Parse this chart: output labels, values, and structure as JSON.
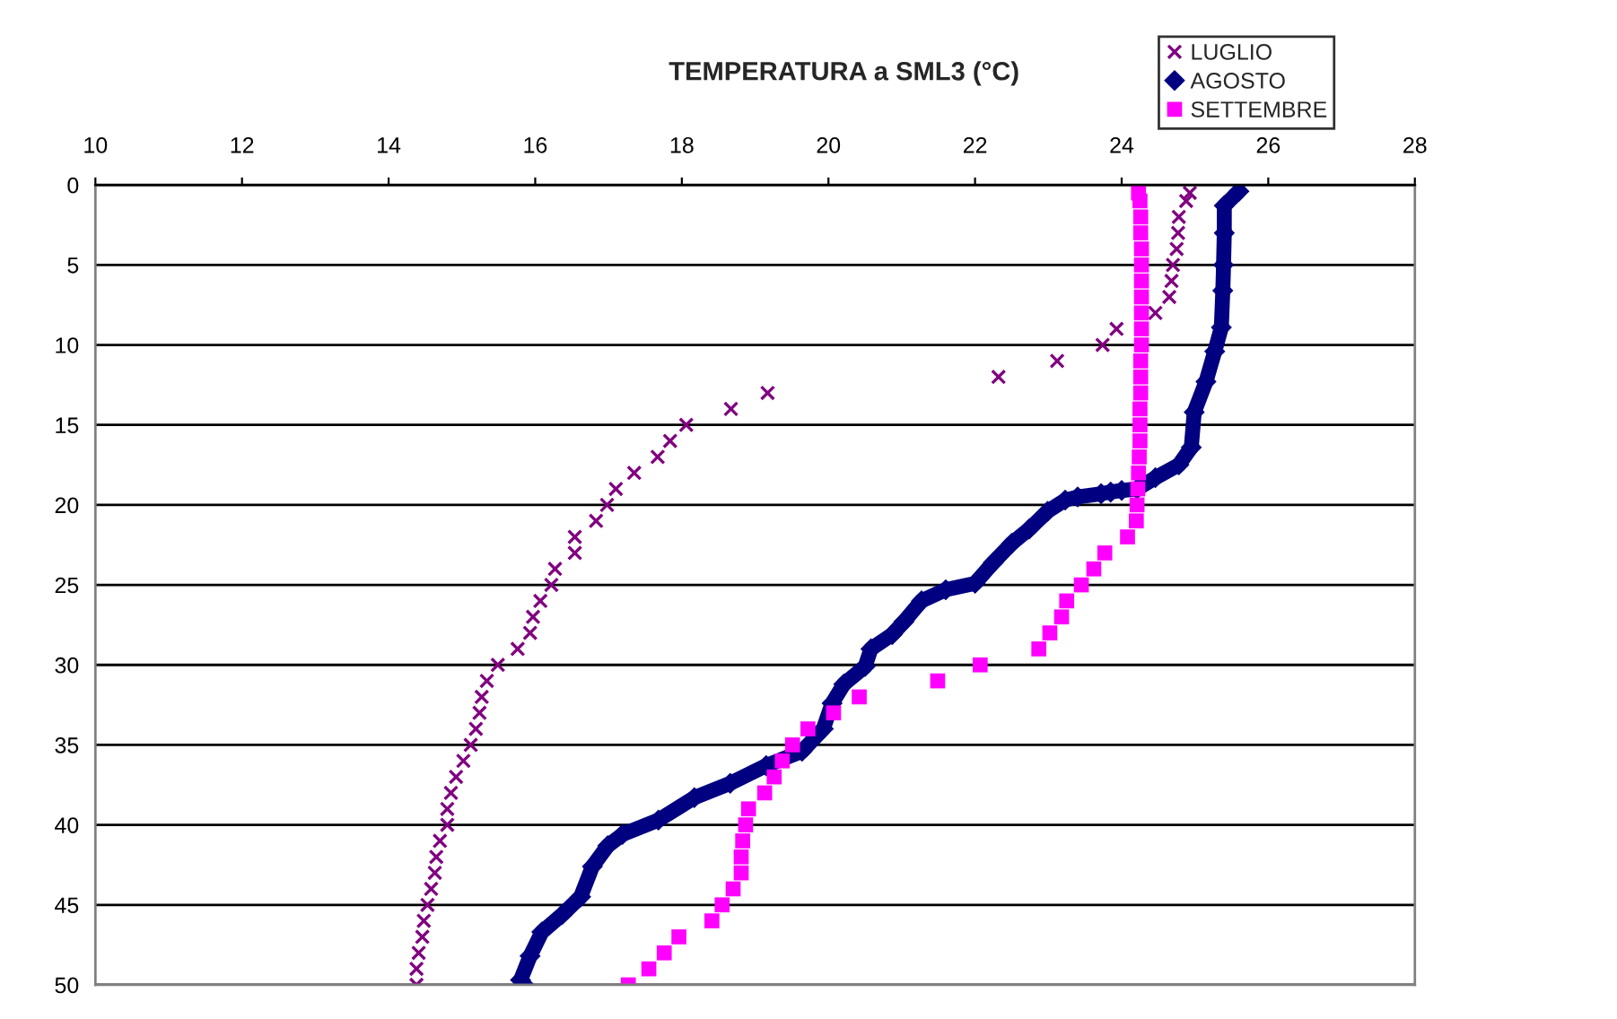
{
  "chart_data": {
    "type": "scatter",
    "title": "TEMPERATURA a SML3 (°C)",
    "xlim": [
      10,
      28
    ],
    "xticks": [
      10,
      12,
      14,
      16,
      18,
      20,
      22,
      24,
      26,
      28
    ],
    "ylim": [
      50,
      0
    ],
    "yticks": [
      0,
      5,
      10,
      15,
      20,
      25,
      30,
      35,
      40,
      45,
      50
    ],
    "grid": "y",
    "legend": "top right",
    "series": [
      {
        "name": "LUGLIO",
        "color": "#800080",
        "marker": "cross",
        "x": [
          24.93,
          24.88,
          24.78,
          24.77,
          24.75,
          24.7,
          24.68,
          24.65,
          24.46,
          23.93,
          23.74,
          23.12,
          22.32,
          19.17,
          18.67,
          18.06,
          17.84,
          17.67,
          17.35,
          17.1,
          16.98,
          16.83,
          16.54,
          16.54,
          16.27,
          16.22,
          16.07,
          15.97,
          15.93,
          15.76,
          15.49,
          15.34,
          15.27,
          15.24,
          15.19,
          15.12,
          15.02,
          14.92,
          14.85,
          14.8,
          14.8,
          14.7,
          14.65,
          14.63,
          14.58,
          14.53,
          14.48,
          14.46,
          14.41,
          14.38,
          14.38
        ],
        "values": [
          0.5,
          1,
          2,
          3,
          4,
          5,
          6,
          7,
          8,
          9,
          10,
          11,
          12,
          13,
          14,
          15,
          16,
          17,
          18,
          19,
          20,
          21,
          22,
          23,
          24,
          25,
          26,
          27,
          28,
          29,
          30,
          31,
          32,
          33,
          34,
          35,
          36,
          37,
          38,
          39,
          40,
          41,
          42,
          43,
          44,
          45,
          46,
          47,
          48,
          49,
          50
        ]
      },
      {
        "name": "AGOSTO",
        "color": "#000080",
        "marker": "diamond",
        "type": "line",
        "x": [
          25.6,
          25.4,
          25.4,
          25.39,
          25.38,
          25.36,
          25.27,
          25.15,
          24.99,
          24.95,
          24.78,
          24.46,
          24.21,
          24.0,
          23.85,
          23.72,
          23.4,
          23.23,
          22.99,
          22.74,
          22.5,
          22.25,
          22.0,
          21.6,
          21.27,
          21.03,
          20.87,
          20.58,
          20.5,
          20.21,
          20.05,
          19.93,
          19.64,
          19.15,
          18.66,
          18.17,
          17.68,
          17.19,
          16.99,
          16.78,
          16.62,
          16.37,
          16.09,
          15.93,
          15.8,
          15.85
        ],
        "values": [
          0.4,
          1.3,
          3,
          5,
          6.6,
          8.9,
          10.4,
          12.3,
          14.2,
          16.4,
          17.5,
          18.3,
          19.0,
          19.1,
          19.2,
          19.3,
          19.5,
          19.7,
          20.4,
          21.5,
          22.4,
          23.6,
          24.9,
          25.3,
          26.0,
          27.3,
          28.1,
          29.0,
          30.1,
          31.2,
          32.4,
          34.0,
          35.4,
          36.3,
          37.4,
          38.3,
          39.7,
          40.6,
          41.3,
          42.6,
          44.5,
          45.6,
          46.7,
          48.2,
          49.7,
          50.0
        ]
      },
      {
        "name": "SETTEMBRE",
        "color": "#ff00ff",
        "marker": "square",
        "x": [
          24.23,
          24.25,
          24.26,
          24.26,
          24.27,
          24.27,
          24.27,
          24.27,
          24.27,
          24.27,
          24.27,
          24.26,
          24.26,
          24.26,
          24.25,
          24.25,
          24.25,
          24.24,
          24.23,
          24.22,
          24.21,
          24.2,
          24.08,
          23.77,
          23.62,
          23.45,
          23.25,
          23.18,
          23.02,
          22.87,
          22.07,
          21.49,
          20.42,
          20.07,
          19.72,
          19.51,
          19.37,
          19.26,
          19.13,
          18.91,
          18.87,
          18.83,
          18.81,
          18.81,
          18.7,
          18.55,
          18.41,
          17.96,
          17.76,
          17.55,
          17.27
        ],
        "values": [
          0.5,
          1,
          2,
          3,
          4,
          5,
          6,
          7,
          8,
          9,
          10,
          11,
          12,
          13,
          14,
          15,
          16,
          17,
          18,
          19,
          20,
          21,
          22,
          23,
          24,
          25,
          26,
          27,
          28,
          29,
          30,
          31,
          32,
          33,
          34,
          35,
          36,
          37,
          38,
          39,
          40,
          41,
          42,
          43,
          44,
          45,
          46,
          47,
          48,
          49,
          50
        ]
      }
    ]
  }
}
